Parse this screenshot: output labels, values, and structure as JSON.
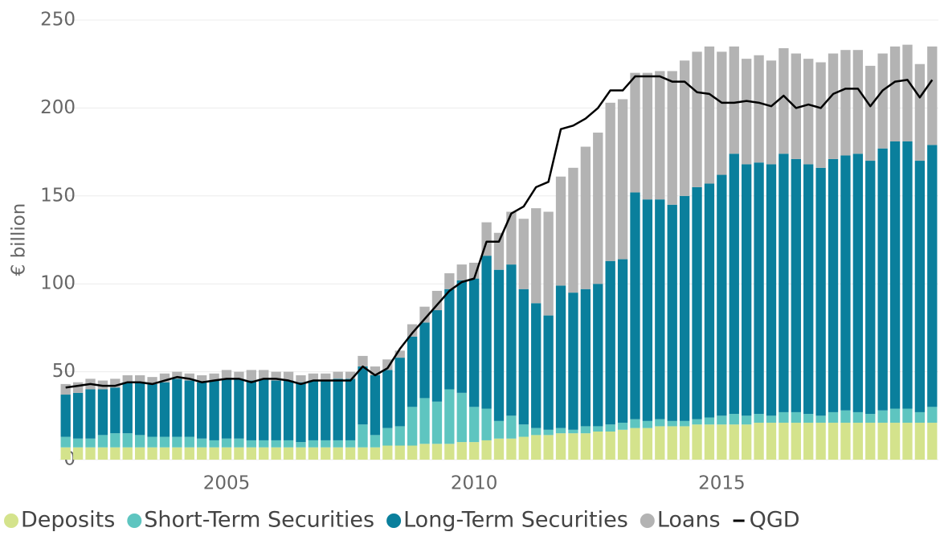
{
  "chart_data": {
    "type": "bar",
    "stacked": true,
    "y_label": "€ billion",
    "categories": [
      null,
      null,
      null,
      null,
      null,
      null,
      null,
      null,
      null,
      null,
      null,
      null,
      null,
      "2005",
      null,
      null,
      null,
      null,
      null,
      null,
      null,
      null,
      null,
      null,
      null,
      null,
      null,
      null,
      null,
      null,
      null,
      null,
      null,
      "2010",
      null,
      null,
      null,
      null,
      null,
      null,
      null,
      null,
      null,
      null,
      null,
      null,
      null,
      null,
      null,
      null,
      null,
      null,
      null,
      "2015",
      null,
      null,
      null,
      null,
      null,
      null,
      null,
      null,
      null,
      null,
      null,
      null,
      null,
      null,
      null,
      null,
      null
    ],
    "series": [
      {
        "name": "Deposits",
        "color": "#d4e38c",
        "values": [
          7,
          7,
          7,
          7,
          7,
          7,
          7,
          7,
          7,
          7,
          7,
          7,
          7,
          7,
          7,
          7,
          7,
          7,
          7,
          7,
          7,
          7,
          7,
          7,
          7,
          7,
          8,
          8,
          8,
          9,
          9,
          9,
          10,
          10,
          11,
          12,
          12,
          13,
          14,
          14,
          15,
          15,
          15,
          16,
          16,
          17,
          18,
          18,
          19,
          19,
          19,
          20,
          20,
          20,
          20,
          20,
          21,
          21,
          21,
          21,
          21,
          21,
          21,
          21,
          21,
          21,
          21,
          21,
          21,
          21,
          21
        ]
      },
      {
        "name": "Short-Term Securities",
        "color": "#5ec5c0",
        "values": [
          6,
          5,
          5,
          7,
          8,
          8,
          7,
          6,
          6,
          6,
          6,
          5,
          4,
          5,
          5,
          4,
          4,
          4,
          4,
          3,
          4,
          4,
          4,
          4,
          13,
          7,
          10,
          11,
          22,
          26,
          24,
          31,
          28,
          20,
          18,
          10,
          13,
          7,
          4,
          3,
          3,
          2,
          4,
          3,
          4,
          4,
          5,
          4,
          4,
          3,
          3,
          3,
          4,
          5,
          6,
          5,
          5,
          4,
          6,
          6,
          5,
          4,
          6,
          7,
          6,
          5,
          7,
          8,
          8,
          6,
          9
        ]
      },
      {
        "name": "Long-Term Securities",
        "color": "#0a7f9c",
        "values": [
          24,
          26,
          28,
          26,
          26,
          29,
          30,
          30,
          31,
          33,
          32,
          32,
          34,
          34,
          34,
          34,
          35,
          34,
          34,
          34,
          34,
          34,
          35,
          35,
          33,
          34,
          33,
          39,
          40,
          43,
          52,
          57,
          64,
          73,
          87,
          86,
          86,
          77,
          71,
          65,
          81,
          78,
          78,
          81,
          93,
          93,
          129,
          126,
          125,
          123,
          128,
          132,
          133,
          137,
          148,
          143,
          143,
          143,
          147,
          144,
          142,
          141,
          144,
          145,
          147,
          144,
          149,
          152,
          152,
          143,
          149
        ]
      },
      {
        "name": "Loans",
        "color": "#b3b3b3",
        "values": [
          6,
          6,
          6,
          5,
          5,
          4,
          4,
          4,
          5,
          4,
          4,
          4,
          4,
          5,
          4,
          6,
          5,
          5,
          5,
          4,
          4,
          4,
          4,
          4,
          6,
          5,
          6,
          4,
          7,
          9,
          11,
          9,
          9,
          9,
          19,
          21,
          30,
          40,
          54,
          59,
          62,
          71,
          81,
          86,
          90,
          91,
          68,
          72,
          73,
          76,
          77,
          77,
          78,
          70,
          61,
          60,
          61,
          59,
          60,
          60,
          60,
          60,
          60,
          60,
          59,
          54,
          54,
          54,
          55,
          55,
          56
        ]
      },
      {
        "name": "QGD",
        "type": "line",
        "color": "#000000",
        "values": [
          41,
          42,
          43,
          42,
          42,
          44,
          44,
          43,
          45,
          47,
          46,
          44,
          45,
          46,
          46,
          44,
          46,
          46,
          45,
          43,
          45,
          45,
          45,
          45,
          53,
          48,
          52,
          63,
          72,
          80,
          88,
          96,
          101,
          103,
          124,
          124,
          140,
          144,
          155,
          158,
          188,
          190,
          194,
          200,
          210,
          210,
          218,
          218,
          218,
          215,
          215,
          209,
          208,
          203,
          203,
          204,
          203,
          201,
          207,
          200,
          202,
          200,
          208,
          211,
          211,
          201,
          210,
          215,
          216,
          206,
          216
        ]
      }
    ],
    "ylim": [
      0,
      250
    ],
    "yticks": [
      0,
      50,
      100,
      150,
      200,
      250
    ],
    "grid": true
  }
}
